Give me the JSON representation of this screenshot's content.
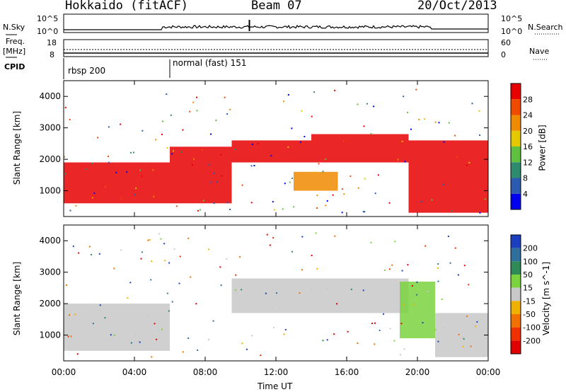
{
  "header": {
    "station": "Hokkaido (fitACF)",
    "beam": "Beam 07",
    "date": "20/Oct/2013"
  },
  "small_panels": {
    "nsky_label": "N.Sky",
    "nsky_ticks": [
      "10^5",
      "10^0"
    ],
    "nsearch_label": "N.Search",
    "freq_label": "Freq.",
    "freq_unit": "[MHz]",
    "freq_ticks": [
      "18",
      "8"
    ],
    "nave_label": "Nave",
    "nave_ticks": [
      "60",
      "0"
    ],
    "cpid_label": "CPID",
    "cpid_segments": [
      {
        "label": "rbsp 200",
        "start_hour": 0
      },
      {
        "label": "normal (fast) 151",
        "start_hour": 6
      }
    ]
  },
  "x_axis": {
    "label": "Time UT",
    "ticks": [
      "00:00",
      "04:00",
      "08:00",
      "12:00",
      "16:00",
      "20:00",
      "00:00"
    ],
    "range_hours": [
      0,
      24
    ]
  },
  "power_panel": {
    "ylabel": "Slant Range [km]",
    "yticks": [
      "4000",
      "3000",
      "2000",
      "1000"
    ],
    "colorbar_label": "Power [dB]",
    "colorbar_ticks": [
      "28",
      "24",
      "20",
      "16",
      "12",
      "8",
      "4"
    ],
    "colors": [
      "#0000ee",
      "#2a5bb0",
      "#2e8b6e",
      "#5fbf3f",
      "#e6c800",
      "#f08a00",
      "#f04a00",
      "#e80000"
    ]
  },
  "velocity_panel": {
    "ylabel": "Slant Range [km]",
    "yticks": [
      "4000",
      "3000",
      "2000",
      "1000"
    ],
    "colorbar_label": "Velocity [m s^-1]",
    "colorbar_ticks": [
      "200",
      "100",
      "50",
      "15",
      "-15",
      "-50",
      "-100",
      "-200"
    ],
    "colors": [
      "#1c3fbf",
      "#2e6f9e",
      "#2e8b57",
      "#7bd23f",
      "#c8c8c8",
      "#f0b000",
      "#f07000",
      "#f03000",
      "#e00000"
    ]
  },
  "chart_data": {
    "type": "heatmap",
    "title": "Hokkaido (fitACF)",
    "xlabel": "Time UT",
    "ylabel": "Slant Range [km]",
    "xlim": [
      0,
      24
    ],
    "ylim": [
      180,
      4500
    ],
    "power_regions": [
      {
        "t0": 0.0,
        "t1": 6.0,
        "r0": 600,
        "r1": 1900,
        "level": "high"
      },
      {
        "t0": 6.0,
        "t1": 9.5,
        "r0": 600,
        "r1": 2400,
        "level": "high"
      },
      {
        "t0": 9.5,
        "t1": 14.0,
        "r0": 1900,
        "r1": 2600,
        "level": "high"
      },
      {
        "t0": 13.0,
        "t1": 15.5,
        "r0": 1000,
        "r1": 1600,
        "level": "medium"
      },
      {
        "t0": 14.0,
        "t1": 19.5,
        "r0": 1900,
        "r1": 2800,
        "level": "high"
      },
      {
        "t0": 19.5,
        "t1": 24.0,
        "r0": 300,
        "r1": 2600,
        "level": "high"
      }
    ],
    "velocity_regions": [
      {
        "t0": 0.0,
        "t1": 6.0,
        "r0": 500,
        "r1": 2000,
        "velocity": "near-zero"
      },
      {
        "t0": 9.5,
        "t1": 19.5,
        "r0": 1700,
        "r1": 2800,
        "velocity": "near-zero"
      },
      {
        "t0": 19.0,
        "t1": 21.0,
        "r0": 900,
        "r1": 2700,
        "velocity": "positive 15-50"
      },
      {
        "t0": 21.0,
        "t1": 24.0,
        "r0": 300,
        "r1": 1700,
        "velocity": "near-zero"
      }
    ]
  }
}
